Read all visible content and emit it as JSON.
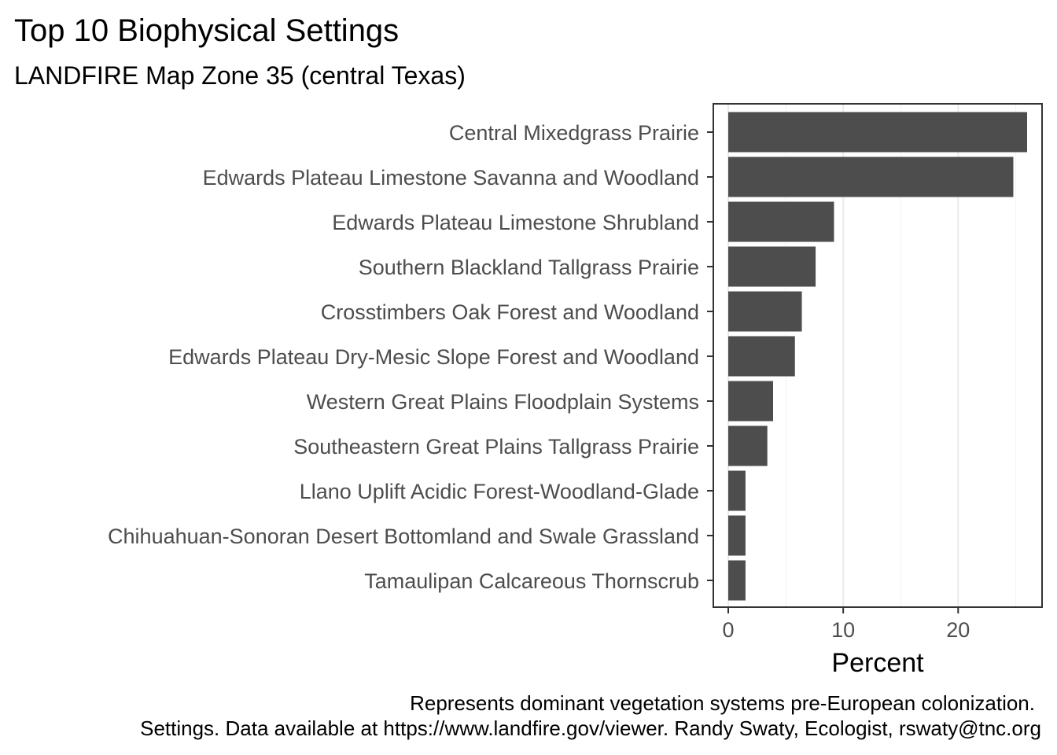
{
  "chart_data": {
    "type": "bar",
    "orientation": "horizontal",
    "title": "Top 10 Biophysical Settings",
    "subtitle": "LANDFIRE Map Zone 35 (central Texas)",
    "xlabel": "Percent",
    "ylabel": "",
    "categories": [
      "Central Mixedgrass Prairie",
      "Edwards Plateau Limestone Savanna and Woodland",
      "Edwards Plateau Limestone Shrubland",
      "Southern Blackland Tallgrass Prairie",
      "Crosstimbers Oak Forest and Woodland",
      "Edwards Plateau Dry-Mesic Slope Forest and Woodland",
      "Western Great Plains Floodplain Systems",
      "Southeastern Great Plains Tallgrass Prairie",
      "Llano Uplift Acidic Forest-Woodland-Glade",
      "Chihuahuan-Sonoran Desert Bottomland and Swale Grassland",
      "Tamaulipan Calcareous Thornscrub"
    ],
    "values": [
      26.0,
      24.8,
      9.2,
      7.6,
      6.4,
      5.8,
      3.9,
      3.4,
      1.5,
      1.5,
      1.5
    ],
    "xticks": [
      0,
      10,
      20
    ],
    "xlim": [
      -1.3,
      27.3
    ],
    "grid": true,
    "bar_color": "#4d4d4d",
    "caption_lines": [
      "Represents dominant vegetation systems pre-European colonization.",
      "Settings.  Data available at https://www.landfire.gov/viewer. Randy Swaty, Ecologist, rswaty@tnc.org"
    ]
  }
}
